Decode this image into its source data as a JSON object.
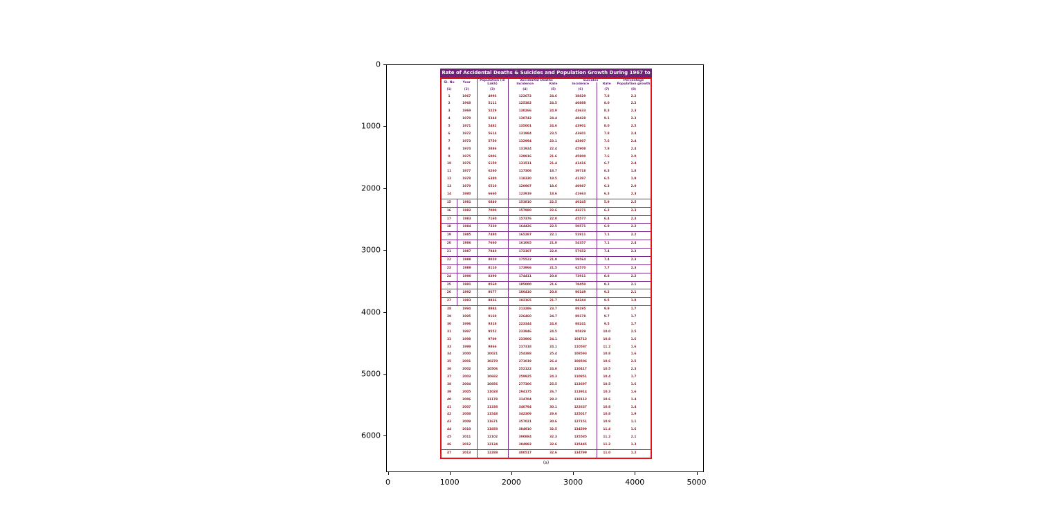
{
  "chart_data": {
    "type": "table",
    "title": "Rate of Accidental Deaths & Suicides and Population Growth During 1967 to 2013",
    "caption": "(a)",
    "column_groups": {
      "accidental": "Accidental Deaths",
      "suicides": "Suicides"
    },
    "columns": {
      "sl_no": "Sl. No",
      "year": "Year",
      "population": "Population (in Lakh)",
      "acc_incidence": "Incidence",
      "acc_rate": "Rate",
      "sui_incidence": "Incidence",
      "sui_rate": "Rate",
      "growth": "Percentage Population growth"
    },
    "column_numbers": [
      "(1)",
      "(2)",
      "(3)",
      "(4)",
      "(5)",
      "(6)",
      "(7)",
      "(8)"
    ],
    "rows": [
      [
        "1",
        "1967",
        "4996",
        "122672",
        "24.6",
        "38829",
        "7.8",
        "2.2"
      ],
      [
        "2",
        "1968",
        "5111",
        "125382",
        "24.5",
        "40888",
        "8.0",
        "2.2"
      ],
      [
        "3",
        "1969",
        "5229",
        "130266",
        "24.9",
        "43633",
        "8.3",
        "2.3"
      ],
      [
        "4",
        "1970",
        "5348",
        "130742",
        "24.4",
        "48428",
        "9.1",
        "2.3"
      ],
      [
        "5",
        "1971",
        "5482",
        "135001",
        "24.6",
        "43901",
        "8.0",
        "2.5"
      ],
      [
        "6",
        "1972",
        "5614",
        "131984",
        "23.5",
        "43601",
        "7.8",
        "2.4"
      ],
      [
        "7",
        "1973",
        "5750",
        "132994",
        "23.1",
        "43807",
        "7.6",
        "2.4"
      ],
      [
        "8",
        "1974",
        "5886",
        "131924",
        "22.4",
        "45908",
        "7.8",
        "2.4"
      ],
      [
        "9",
        "1975",
        "6006",
        "129916",
        "21.6",
        "45800",
        "7.6",
        "2.0"
      ],
      [
        "10",
        "1976",
        "6150",
        "131511",
        "21.4",
        "41416",
        "6.7",
        "2.4"
      ],
      [
        "11",
        "1977",
        "6260",
        "117306",
        "18.7",
        "39718",
        "6.3",
        "1.8"
      ],
      [
        "12",
        "1978",
        "6380",
        "118330",
        "18.5",
        "41397",
        "6.5",
        "1.9"
      ],
      [
        "13",
        "1979",
        "6510",
        "120907",
        "18.6",
        "40987",
        "6.3",
        "2.0"
      ],
      [
        "14",
        "1980",
        "6660",
        "123919",
        "18.6",
        "41663",
        "6.3",
        "2.3"
      ],
      [
        "15",
        "1981",
        "6840",
        "153810",
        "22.5",
        "40245",
        "5.9",
        "2.5"
      ],
      [
        "16",
        "1982",
        "7000",
        "157980",
        "22.6",
        "43271",
        "6.2",
        "2.3"
      ],
      [
        "17",
        "1983",
        "7160",
        "157376",
        "22.0",
        "45577",
        "6.4",
        "2.3"
      ],
      [
        "18",
        "1984",
        "7320",
        "164426",
        "22.5",
        "50571",
        "6.9",
        "2.2"
      ],
      [
        "19",
        "1985",
        "7480",
        "165287",
        "22.1",
        "52811",
        "7.1",
        "2.2"
      ],
      [
        "20",
        "1986",
        "7660",
        "161065",
        "21.0",
        "54357",
        "7.1",
        "2.4"
      ],
      [
        "21",
        "1987",
        "7840",
        "172107",
        "22.0",
        "57652",
        "7.4",
        "2.3"
      ],
      [
        "22",
        "1988",
        "8020",
        "175522",
        "21.9",
        "59564",
        "7.4",
        "2.3"
      ],
      [
        "23",
        "1989",
        "8110",
        "173966",
        "21.5",
        "62570",
        "7.7",
        "2.3"
      ],
      [
        "24",
        "1990",
        "8390",
        "174411",
        "20.8",
        "73911",
        "8.8",
        "2.2"
      ],
      [
        "25",
        "1991",
        "8560",
        "185000",
        "21.6",
        "78450",
        "9.2",
        "2.1"
      ],
      [
        "26",
        "1992",
        "8677",
        "180410",
        "20.8",
        "80149",
        "9.2",
        "2.1"
      ],
      [
        "27",
        "1993",
        "8836",
        "192165",
        "21.7",
        "84244",
        "9.5",
        "1.8"
      ],
      [
        "28",
        "1994",
        "8984",
        "213286",
        "23.7",
        "89195",
        "9.9",
        "1.7"
      ],
      [
        "29",
        "1995",
        "9160",
        "226460",
        "24.7",
        "89178",
        "9.7",
        "1.7"
      ],
      [
        "30",
        "1996",
        "9319",
        "223344",
        "24.0",
        "88241",
        "9.5",
        "1.7"
      ],
      [
        "31",
        "1997",
        "9552",
        "233946",
        "24.5",
        "95829",
        "10.0",
        "2.5"
      ],
      [
        "32",
        "1998",
        "9709",
        "233906",
        "24.1",
        "104713",
        "10.8",
        "1.6"
      ],
      [
        "33",
        "1999",
        "9866",
        "237318",
        "24.1",
        "110587",
        "11.2",
        "1.6"
      ],
      [
        "34",
        "2000",
        "10021",
        "254388",
        "25.4",
        "108593",
        "10.8",
        "1.6"
      ],
      [
        "35",
        "2001",
        "10270",
        "271019",
        "26.4",
        "108506",
        "10.6",
        "2.5"
      ],
      [
        "36",
        "2002",
        "10506",
        "252122",
        "24.0",
        "110417",
        "10.5",
        "2.3"
      ],
      [
        "37",
        "2003",
        "10682",
        "259925",
        "24.3",
        "110851",
        "10.4",
        "1.7"
      ],
      [
        "38",
        "2004",
        "10856",
        "277306",
        "25.5",
        "113697",
        "10.5",
        "1.6"
      ],
      [
        "39",
        "2005",
        "11028",
        "294175",
        "26.7",
        "113914",
        "10.3",
        "1.6"
      ],
      [
        "40",
        "2006",
        "11178",
        "314704",
        "28.2",
        "118112",
        "10.6",
        "1.4"
      ],
      [
        "41",
        "2007",
        "11338",
        "340794",
        "30.1",
        "122637",
        "10.8",
        "1.4"
      ],
      [
        "42",
        "2008",
        "11548",
        "342309",
        "29.6",
        "125017",
        "10.8",
        "1.9"
      ],
      [
        "43",
        "2009",
        "11671",
        "357021",
        "30.6",
        "127151",
        "10.9",
        "1.1"
      ],
      [
        "44",
        "2010",
        "11858",
        "384910",
        "32.5",
        "134599",
        "11.4",
        "1.6"
      ],
      [
        "45",
        "2011",
        "12102",
        "390884",
        "32.3",
        "135585",
        "11.2",
        "2.1"
      ],
      [
        "46",
        "2012",
        "12134",
        "394982",
        "32.6",
        "135445",
        "11.2",
        "1.3"
      ],
      [
        "47",
        "2013",
        "12288",
        "400517",
        "32.6",
        "134799",
        "11.0",
        "1.2"
      ]
    ],
    "boxed_row_range": [
      15,
      27
    ],
    "axes": {
      "x_ticks": [
        "0",
        "1000",
        "2000",
        "3000",
        "4000",
        "5000"
      ],
      "y_ticks": [
        "0",
        "1000",
        "2000",
        "3000",
        "4000",
        "5000",
        "6000"
      ]
    },
    "colors": {
      "title_bg": "#6e2277",
      "header_text": "#701d84",
      "data_text": "#8f2026",
      "outer_border": "#e3131b",
      "grid_line": "#7c2c8c"
    }
  }
}
